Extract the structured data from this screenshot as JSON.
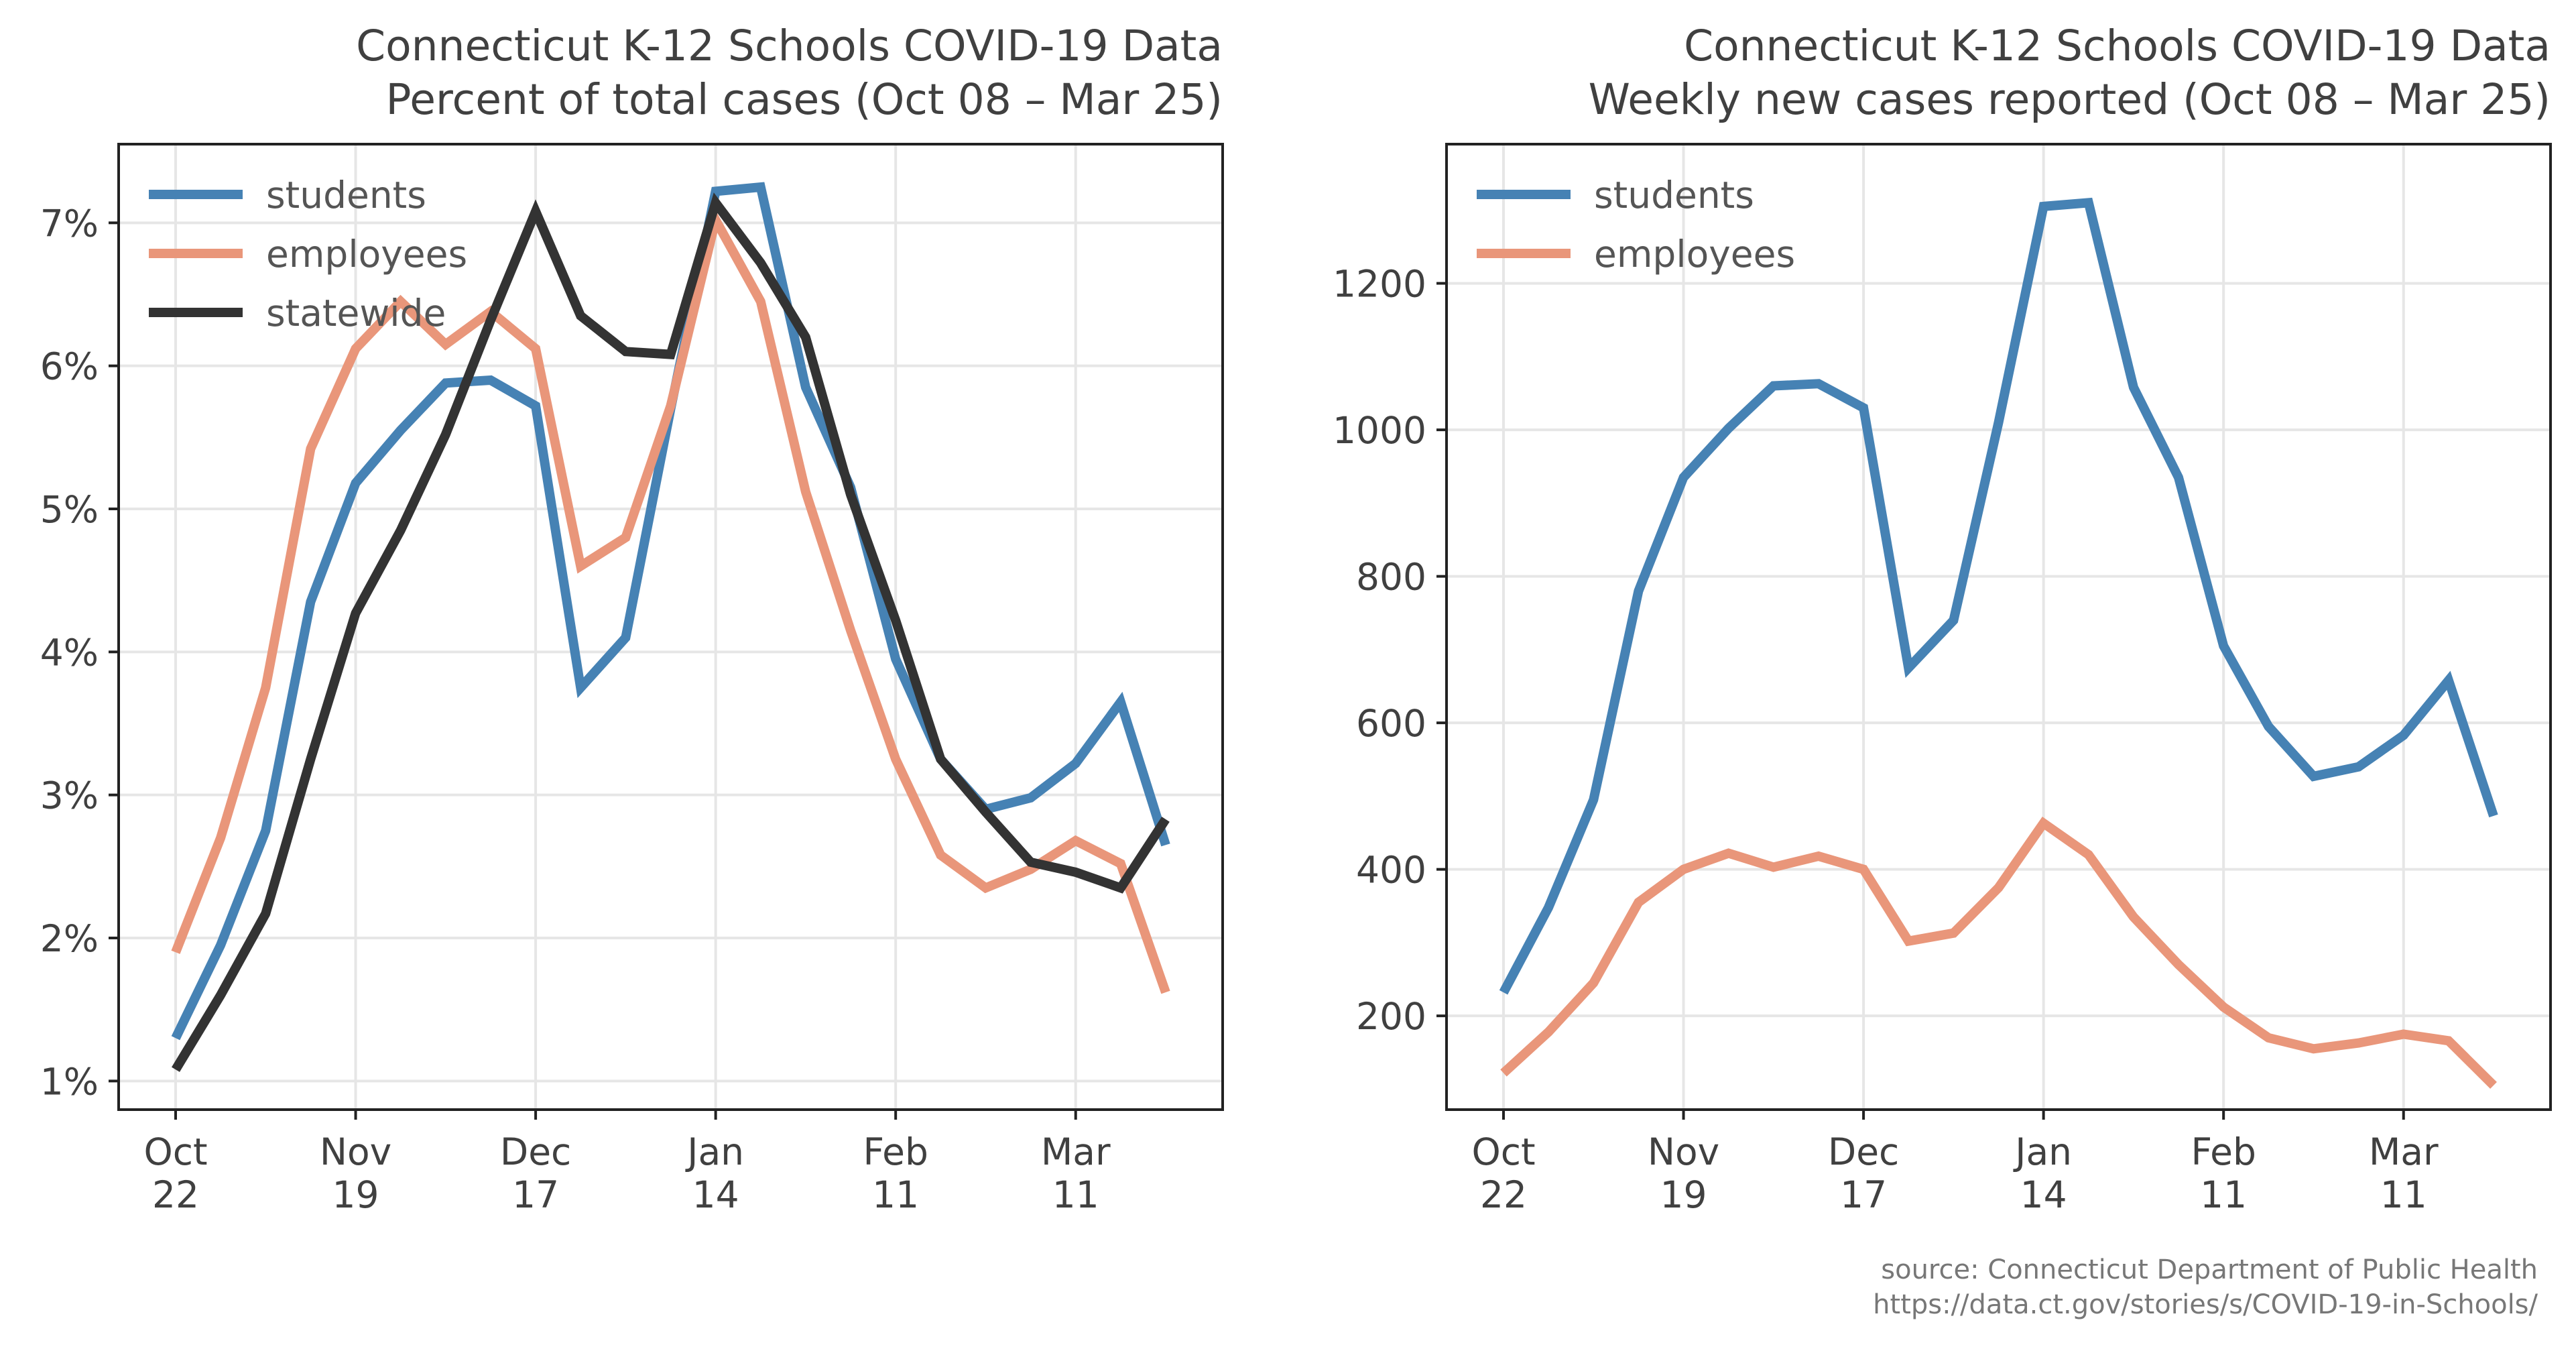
{
  "colors": {
    "students": "#4682b4",
    "employees": "#e9967a",
    "statewide": "#333333",
    "text": "#404040",
    "grid": "#e6e6e6",
    "axis": "#222222"
  },
  "source": {
    "line1": "source: Connecticut Department of Public Health",
    "line2": "https://data.ct.gov/stories/s/COVID-19-in-Schools/"
  },
  "chart_data": [
    {
      "type": "line",
      "title": "Connecticut K-12 Schools COVID-19 Data",
      "subtitle": "Percent of total cases (Oct 08 – Mar 25)",
      "xlabel": "",
      "ylabel": "",
      "x": [
        "Oct 22",
        "Oct 29",
        "Nov 05",
        "Nov 12",
        "Nov 19",
        "Nov 26",
        "Dec 03",
        "Dec 10",
        "Dec 17",
        "Dec 24",
        "Dec 31",
        "Jan 07",
        "Jan 14",
        "Jan 21",
        "Jan 28",
        "Feb 04",
        "Feb 11",
        "Feb 18",
        "Feb 25",
        "Mar 04",
        "Mar 11",
        "Mar 18",
        "Mar 25"
      ],
      "x_tick_labels": [
        {
          "month": "Oct",
          "day": "22",
          "x": "Oct 22"
        },
        {
          "month": "Nov",
          "day": "19",
          "x": "Nov 19"
        },
        {
          "month": "Dec",
          "day": "17",
          "x": "Dec 17"
        },
        {
          "month": "Jan",
          "day": "14",
          "x": "Jan 14"
        },
        {
          "month": "Feb",
          "day": "11",
          "x": "Feb 11"
        },
        {
          "month": "Mar",
          "day": "11",
          "x": "Mar 11"
        }
      ],
      "y_ticks": [
        "1%",
        "2%",
        "3%",
        "4%",
        "5%",
        "6%",
        "7%"
      ],
      "y_tick_values": [
        1,
        2,
        3,
        4,
        5,
        6,
        7
      ],
      "ylim": [
        0.8,
        7.55
      ],
      "grid": true,
      "legend": "top-left",
      "series": [
        {
          "name": "students",
          "color_key": "students",
          "values": [
            1.3,
            1.95,
            2.75,
            4.35,
            5.18,
            5.55,
            5.88,
            5.9,
            5.72,
            3.75,
            4.1,
            5.7,
            7.22,
            7.25,
            5.85,
            5.15,
            3.95,
            3.25,
            2.9,
            2.98,
            3.22,
            3.65,
            2.65
          ]
        },
        {
          "name": "employees",
          "color_key": "employees",
          "values": [
            1.9,
            2.7,
            3.75,
            5.42,
            6.12,
            6.45,
            6.15,
            6.38,
            6.12,
            4.6,
            4.8,
            5.72,
            7.02,
            6.45,
            5.12,
            4.15,
            3.25,
            2.58,
            2.35,
            2.48,
            2.68,
            2.52,
            1.62
          ]
        },
        {
          "name": "statewide",
          "color_key": "statewide",
          "values": [
            1.08,
            1.6,
            2.17,
            3.25,
            4.27,
            4.85,
            5.52,
            6.32,
            7.08,
            6.35,
            6.1,
            6.08,
            7.14,
            6.72,
            6.2,
            5.1,
            4.22,
            3.25,
            2.88,
            2.53,
            2.46,
            2.35,
            2.83
          ]
        }
      ]
    },
    {
      "type": "line",
      "title": "Connecticut K-12 Schools COVID-19 Data",
      "subtitle": "Weekly new cases reported (Oct 08 – Mar 25)",
      "xlabel": "",
      "ylabel": "",
      "x": [
        "Oct 22",
        "Oct 29",
        "Nov 05",
        "Nov 12",
        "Nov 19",
        "Nov 26",
        "Dec 03",
        "Dec 10",
        "Dec 17",
        "Dec 24",
        "Dec 31",
        "Jan 07",
        "Jan 14",
        "Jan 21",
        "Jan 28",
        "Feb 04",
        "Feb 11",
        "Feb 18",
        "Feb 25",
        "Mar 04",
        "Mar 11",
        "Mar 18",
        "Mar 25"
      ],
      "x_tick_labels": [
        {
          "month": "Oct",
          "day": "22",
          "x": "Oct 22"
        },
        {
          "month": "Nov",
          "day": "19",
          "x": "Nov 19"
        },
        {
          "month": "Dec",
          "day": "17",
          "x": "Dec 17"
        },
        {
          "month": "Jan",
          "day": "14",
          "x": "Jan 14"
        },
        {
          "month": "Feb",
          "day": "11",
          "x": "Feb 11"
        },
        {
          "month": "Mar",
          "day": "11",
          "x": "Mar 11"
        }
      ],
      "y_ticks": [
        "200",
        "400",
        "600",
        "800",
        "1000",
        "1200"
      ],
      "y_tick_values": [
        200,
        400,
        600,
        800,
        1000,
        1200
      ],
      "ylim": [
        72,
        1390
      ],
      "grid": true,
      "legend": "top-left",
      "series": [
        {
          "name": "students",
          "color_key": "students",
          "values": [
            232,
            348,
            495,
            780,
            935,
            1002,
            1060,
            1063,
            1030,
            675,
            740,
            1010,
            1305,
            1310,
            1058,
            935,
            705,
            595,
            527,
            540,
            583,
            658,
            473
          ]
        },
        {
          "name": "employees",
          "color_key": "employees",
          "values": [
            122,
            178,
            245,
            355,
            400,
            422,
            403,
            418,
            400,
            302,
            313,
            375,
            463,
            420,
            335,
            270,
            212,
            170,
            155,
            163,
            175,
            166,
            105
          ]
        }
      ]
    }
  ]
}
